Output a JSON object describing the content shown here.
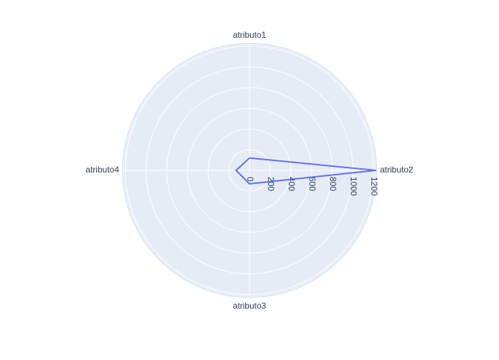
{
  "chart_data": {
    "type": "radar",
    "title": "",
    "categories": [
      "atributo1",
      "atributo2",
      "atributo3",
      "atributo4"
    ],
    "series": [
      {
        "values": [
          120,
          1220,
          130,
          130
        ]
      }
    ],
    "radial_range": [
      0,
      1220
    ],
    "radial_ticks": [
      0,
      200,
      400,
      600,
      800,
      1000,
      1200
    ],
    "radial_tick_labels": [
      "0",
      "200",
      "400",
      "600",
      "800",
      "1000",
      "1200"
    ],
    "grid": true,
    "legend": "none"
  },
  "colors": {
    "plot_background": "#e5ecf6",
    "grid": "#ffffff",
    "series_line": "#636efa",
    "text": "#2a3f5f"
  }
}
